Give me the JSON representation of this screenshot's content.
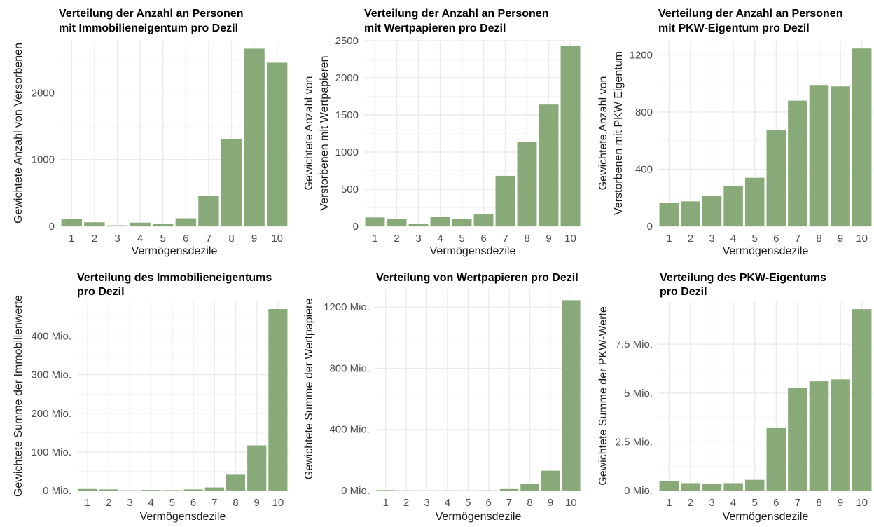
{
  "colors": {
    "bar": "#88aa79",
    "grid_major": "#ebebeb",
    "grid_minor": "#f5f5f5",
    "text": "#4d4d4d"
  },
  "chart_data": [
    {
      "type": "bar",
      "title": [
        "Verteilung der Anzahl an Personen",
        "mit Immobilieneigentum pro Dezil"
      ],
      "xlabel": "Vermögensdezile",
      "ylabel": [
        "Gewichtete Anzahl von Versorbenen"
      ],
      "categories": [
        "1",
        "2",
        "3",
        "4",
        "5",
        "6",
        "7",
        "8",
        "9",
        "10"
      ],
      "values": [
        110,
        60,
        15,
        55,
        40,
        120,
        460,
        1310,
        2660,
        2450
      ],
      "ylim": [
        0,
        2780
      ],
      "yticks": [
        0,
        1000,
        2000
      ],
      "ytick_labels": [
        "0",
        "1000",
        "2000"
      ],
      "grid": true
    },
    {
      "type": "bar",
      "title": [
        "Verteilung der Anzahl an Personen",
        "mit Wertpapieren pro Dezil"
      ],
      "xlabel": "Vermögensdezile",
      "ylabel": [
        "Gewichtete Anzahl von",
        "Verstorbenen mit Wertpapieren"
      ],
      "categories": [
        "1",
        "2",
        "3",
        "4",
        "5",
        "6",
        "7",
        "8",
        "9",
        "10"
      ],
      "values": [
        120,
        95,
        30,
        130,
        100,
        160,
        680,
        1140,
        1640,
        2430
      ],
      "ylim": [
        0,
        2500
      ],
      "yticks": [
        0,
        500,
        1000,
        1500,
        2000,
        2500
      ],
      "ytick_labels": [
        "0",
        "500",
        "1000",
        "1500",
        "2000",
        "2500"
      ],
      "grid": true
    },
    {
      "type": "bar",
      "title": [
        "Verteilung der Anzahl an Personen",
        "mit PKW-Eigentum pro Dezil"
      ],
      "xlabel": "Vermögensdezile",
      "ylabel": [
        "Gewichtete Anzahl von",
        "Verstorbenen mit PKW Eigentum"
      ],
      "categories": [
        "1",
        "2",
        "3",
        "4",
        "5",
        "6",
        "7",
        "8",
        "9",
        "10"
      ],
      "values": [
        165,
        175,
        215,
        285,
        340,
        675,
        880,
        985,
        980,
        1245
      ],
      "ylim": [
        0,
        1300
      ],
      "yticks": [
        0,
        400,
        800,
        1200
      ],
      "ytick_labels": [
        "0",
        "400",
        "800",
        "1200"
      ],
      "grid": true
    },
    {
      "type": "bar",
      "title": [
        "Verteilung des Immobilieneigentums",
        "pro Dezil"
      ],
      "xlabel": "Vermögensdezile",
      "ylabel": [
        "Gewichtete Summe der Immobilienwerte"
      ],
      "categories": [
        "1",
        "2",
        "3",
        "4",
        "5",
        "6",
        "7",
        "8",
        "9",
        "10"
      ],
      "values": [
        4,
        3,
        0.5,
        1.5,
        1,
        3,
        8,
        41,
        117,
        470
      ],
      "ylim": [
        0,
        490
      ],
      "yticks": [
        0,
        100,
        200,
        300,
        400
      ],
      "ytick_labels": [
        "0 Mio.",
        "100 Mio.",
        "200 Mio.",
        "300 Mio.",
        "400 Mio."
      ],
      "grid": true
    },
    {
      "type": "bar",
      "title": [
        "Verteilung von Wertpapieren pro Dezil"
      ],
      "xlabel": "Vermögensdezile",
      "ylabel": [
        "Gewichtete Summe der Wertpapiere"
      ],
      "categories": [
        "1",
        "2",
        "3",
        "4",
        "5",
        "6",
        "7",
        "8",
        "9",
        "10"
      ],
      "values": [
        3,
        1,
        0.5,
        0.5,
        0.5,
        1,
        10,
        45,
        130,
        1245
      ],
      "ylim": [
        0,
        1320
      ],
      "yticks": [
        0,
        400,
        800,
        1200
      ],
      "ytick_labels": [
        "0 Mio.",
        "400 Mio.",
        "800 Mio.",
        "1200 Mio."
      ],
      "grid": true
    },
    {
      "type": "bar",
      "title": [
        "Verteilung des PKW-Eigentums",
        "pro Dezil"
      ],
      "xlabel": "Vermögensdezile",
      "ylabel": [
        "Gewichtete Summe der PKW-Werte"
      ],
      "categories": [
        "1",
        "2",
        "3",
        "4",
        "5",
        "6",
        "7",
        "8",
        "9",
        "10"
      ],
      "values": [
        0.5,
        0.38,
        0.35,
        0.38,
        0.55,
        3.2,
        5.25,
        5.6,
        5.7,
        9.3
      ],
      "ylim": [
        0,
        9.7
      ],
      "yticks": [
        0,
        2.5,
        5,
        7.5
      ],
      "ytick_labels": [
        "0 Mio.",
        "2.5 Mio.",
        "5 Mio.",
        "7.5 Mio."
      ],
      "grid": true
    }
  ]
}
